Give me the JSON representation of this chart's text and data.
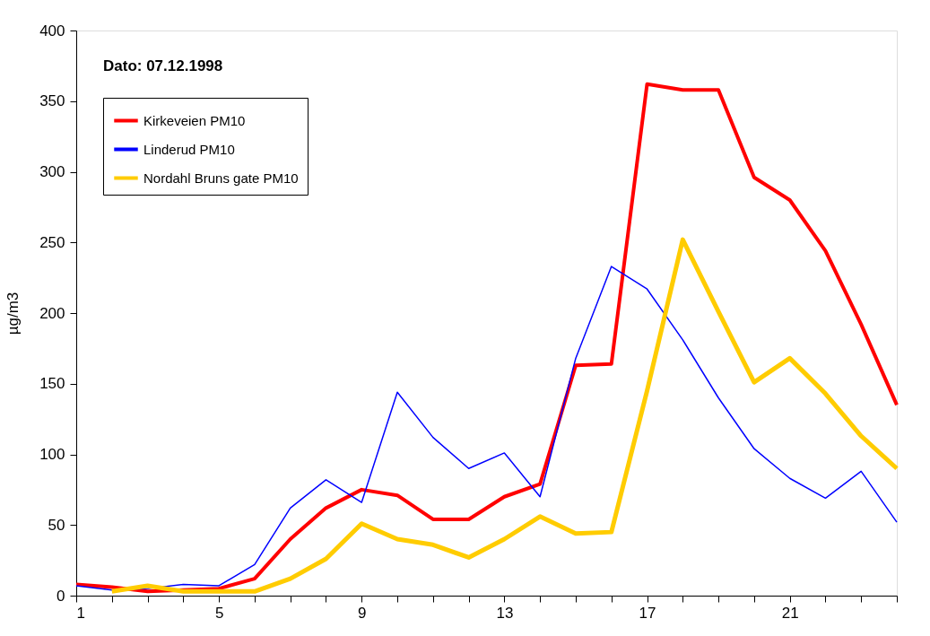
{
  "chart_data": {
    "type": "line",
    "title": "Dato: 07.12.1998",
    "ylabel": "µg/m3",
    "x": [
      1,
      2,
      3,
      4,
      5,
      6,
      7,
      8,
      9,
      10,
      11,
      12,
      13,
      14,
      15,
      16,
      17,
      18,
      19,
      20,
      21,
      22,
      23,
      24
    ],
    "series": [
      {
        "name": "Kirkeveien PM10",
        "color": "#ff0000",
        "values": [
          8,
          6,
          3,
          4,
          5,
          12,
          40,
          62,
          75,
          71,
          54,
          54,
          70,
          79,
          163,
          164,
          362,
          358,
          358,
          296,
          280,
          244,
          192,
          135
        ]
      },
      {
        "name": "Linderud PM10",
        "color": "#0000ff",
        "values": [
          7,
          4,
          5,
          8,
          7,
          22,
          62,
          82,
          66,
          144,
          112,
          90,
          101,
          70,
          168,
          233,
          217,
          181,
          140,
          104,
          83,
          69,
          88,
          52
        ]
      },
      {
        "name": "Nordahl Bruns gate PM10",
        "color": "#ffcc00",
        "values": [
          null,
          3,
          7,
          3,
          3,
          3,
          12,
          26,
          51,
          40,
          36,
          27,
          40,
          56,
          44,
          45,
          145,
          252,
          201,
          151,
          168,
          143,
          113,
          90
        ]
      }
    ],
    "xlim": [
      1,
      24
    ],
    "xticks": [
      1,
      {
        "value": 2,
        "label": null
      },
      {
        "value": 3,
        "label": null
      },
      {
        "value": 4,
        "label": null
      },
      5,
      {
        "value": 6,
        "label": null
      },
      {
        "value": 7,
        "label": null
      },
      {
        "value": 8,
        "label": null
      },
      9,
      {
        "value": 10,
        "label": null
      },
      {
        "value": 11,
        "label": null
      },
      {
        "value": 12,
        "label": null
      },
      13,
      {
        "value": 14,
        "label": null
      },
      {
        "value": 15,
        "label": null
      },
      {
        "value": 16,
        "label": null
      },
      17,
      {
        "value": 18,
        "label": null
      },
      {
        "value": 19,
        "label": null
      },
      {
        "value": 20,
        "label": null
      },
      21,
      {
        "value": 22,
        "label": null
      },
      {
        "value": 23,
        "label": null
      },
      {
        "value": 24,
        "label": null
      }
    ],
    "ylim": [
      0,
      400
    ],
    "yticks": [
      0,
      50,
      100,
      150,
      200,
      250,
      300,
      350,
      400
    ],
    "grid": false,
    "legend": "top left",
    "marker": "none",
    "line_style": "solid"
  }
}
